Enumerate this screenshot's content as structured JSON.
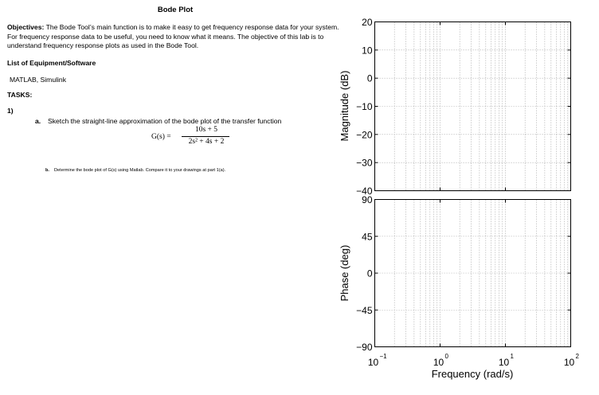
{
  "document": {
    "title": "Bode Plot",
    "objectives_label": "Objectives:",
    "objectives_text": "The Bode Tool’s main function is to make it easy to get frequency response data for your system. For frequency response data to be useful, you need to know what it means. The objective of this lab is to understand frequency response plots as used in the Bode Tool.",
    "equipment_heading": "List of Equipment/Software",
    "equipment_items": "MATLAB, Simulink",
    "tasks_heading": "TASKS:",
    "task_number": "1)",
    "task_a_label": "a.",
    "task_a_text": "Sketch the straight-line approximation of the bode plot of the transfer function",
    "tf_lhs": "G(s)  =",
    "tf_numerator": "10s + 5",
    "tf_denominator": "2s² + 4s + 2",
    "task_b_label": "b.",
    "task_b_text": "Determine the bode plot of G(s) using Matlab. Compare it to your drawings at part 1(a)."
  },
  "chart_data": {
    "type": "line",
    "description": "Blank semilog Bode plot grid with two panels (magnitude and phase)",
    "x_scale": "log",
    "xlim": [
      0.1,
      100
    ],
    "xlabel": "Frequency (rad/s)",
    "x_ticks": [
      {
        "base": "10",
        "exp": "−1"
      },
      {
        "base": "10",
        "exp": "0"
      },
      {
        "base": "10",
        "exp": "1"
      },
      {
        "base": "10",
        "exp": "2"
      }
    ],
    "grid": true,
    "panels": [
      {
        "name": "magnitude",
        "ylabel": "Magnitude (dB)",
        "ylim": [
          -40,
          20
        ],
        "y_ticks": [
          20,
          10,
          0,
          -10,
          -20,
          -30,
          -40
        ],
        "y_tick_labels": [
          "20",
          "10",
          "0",
          "−10",
          "−20",
          "−30",
          "−40"
        ]
      },
      {
        "name": "phase",
        "ylabel": "Phase (deg)",
        "ylim": [
          -90,
          90
        ],
        "y_ticks": [
          90,
          45,
          0,
          -45,
          -90
        ],
        "y_tick_labels": [
          "90",
          "45",
          "0",
          "−45",
          "−90"
        ]
      }
    ],
    "series": []
  }
}
